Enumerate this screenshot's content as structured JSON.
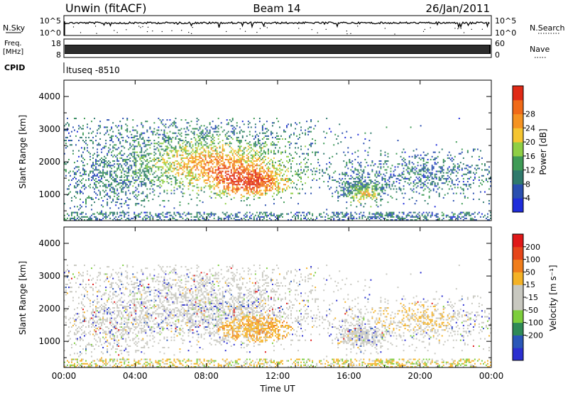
{
  "header": {
    "station": "Unwin (fitACF)",
    "beam": "Beam 14",
    "date": "26/Jan/2011"
  },
  "strips": {
    "nsky_label": "N.Sky",
    "nsky_ticks": [
      "10^5",
      "10^0"
    ],
    "nsearch_label": "N.Search",
    "freq_label_1": "Freq.",
    "freq_label_2": "[MHz]",
    "freq_ticks": [
      "18",
      "8"
    ],
    "nave_ticks": [
      "60",
      "0"
    ],
    "nave_label": "Nave",
    "cpid_label": "CPID",
    "cpid_value": "Ituseq -8510"
  },
  "colors": {
    "power": [
      "#1f2ddb",
      "#2a4fb0",
      "#2f7a6c",
      "#3f9b56",
      "#8fcf45",
      "#f5c531",
      "#f59322",
      "#f06a18",
      "#e02a16"
    ],
    "velocity": [
      "#2b2fd0",
      "#2a57b8",
      "#2f8a57",
      "#7dce3d",
      "#c8c8c0",
      "#c8c8c0",
      "#f4b226",
      "#f07d1b",
      "#e6461a",
      "#e01818"
    ]
  },
  "chart_data": [
    {
      "type": "heatmap",
      "name": "power",
      "ylabel": "Slant Range [km]",
      "ylim": [
        200,
        4500
      ],
      "yticks": [
        1000,
        2000,
        3000,
        4000
      ],
      "colorbar_label": "Power [dB]",
      "colorbar_ticks": [
        4,
        8,
        12,
        16,
        20,
        24,
        28
      ]
    },
    {
      "type": "heatmap",
      "name": "velocity",
      "ylabel": "Slant Range [km]",
      "ylim": [
        200,
        4500
      ],
      "yticks": [
        1000,
        2000,
        3000,
        4000
      ],
      "colorbar_label": "Velocity [m s⁻¹]",
      "colorbar_ticks": [
        "200",
        "100",
        "50",
        "15",
        "-15",
        "-50",
        "-100",
        "-200"
      ]
    }
  ],
  "xaxis": {
    "label": "Time UT",
    "xlim": [
      0,
      24
    ],
    "tick_labels": [
      "00:00",
      "04:00",
      "08:00",
      "12:00",
      "16:00",
      "20:00",
      "00:00"
    ]
  }
}
